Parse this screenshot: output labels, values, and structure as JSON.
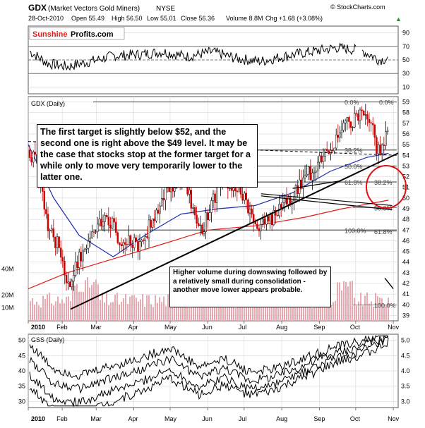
{
  "header": {
    "ticker": "GDX",
    "name": "(Market Vectors Gold Miners)",
    "exchange": "NYSE",
    "date": "28-Oct-2010",
    "open": "Open 55.49",
    "high": "High 56.50",
    "low": "Low 55.01",
    "close": "Close 56.36",
    "volume": "Volume 8.8M",
    "change": "Chg +1.68 (+3.08%)",
    "change_arrow": "▲",
    "source": "© StockCharts.com"
  },
  "logo": {
    "part1": "Sunshine",
    "part2": "Profits.com"
  },
  "colors": {
    "candle": "#d00000",
    "ma_short": "#1f2fb0",
    "ma_long": "#e11b1b",
    "volume_bar": "#e8aab0",
    "annotation_circle": "#e01010",
    "trendline": "#000000",
    "grid": "#cfcfcf"
  },
  "chart_data": [
    {
      "type": "line",
      "panel": "rsi",
      "y_ticks": [
        "90",
        "70",
        "50",
        "30",
        "10"
      ],
      "ylim": [
        0,
        100
      ],
      "x": [
        "2010-01-04",
        "2010-01-20",
        "2010-02-05",
        "2010-02-25",
        "2010-03-15",
        "2010-04-05",
        "2010-04-25",
        "2010-05-15",
        "2010-06-05",
        "2010-06-25",
        "2010-07-15",
        "2010-08-05",
        "2010-08-25",
        "2010-09-15",
        "2010-10-05",
        "2010-10-15",
        "2010-10-20",
        "2010-10-28"
      ],
      "values": [
        64,
        45,
        40,
        48,
        56,
        58,
        62,
        55,
        62,
        52,
        48,
        56,
        62,
        68,
        64,
        56,
        50,
        52
      ],
      "reference_lines": [
        70,
        50,
        30
      ]
    },
    {
      "type": "line",
      "panel": "price",
      "title": "GDX (Daily)",
      "x_ticks": [
        "2010",
        "Feb",
        "Mar",
        "Apr",
        "May",
        "Jun",
        "Jul",
        "Aug",
        "Sep",
        "Oct",
        "Nov"
      ],
      "y_ticks": [
        "59",
        "58",
        "57",
        "56",
        "55",
        "54",
        "53",
        "52",
        "51",
        "50",
        "49",
        "48",
        "47",
        "46",
        "45",
        "44",
        "43",
        "42",
        "41",
        "40",
        "39"
      ],
      "ylim": [
        38.5,
        59.5
      ],
      "x": [
        "2010-01-04",
        "2010-01-11",
        "2010-01-20",
        "2010-02-01",
        "2010-02-05",
        "2010-02-15",
        "2010-03-01",
        "2010-03-10",
        "2010-03-20",
        "2010-04-05",
        "2010-04-20",
        "2010-05-01",
        "2010-05-12",
        "2010-05-25",
        "2010-06-05",
        "2010-06-15",
        "2010-06-28",
        "2010-07-10",
        "2010-07-20",
        "2010-08-01",
        "2010-08-15",
        "2010-08-25",
        "2010-09-05",
        "2010-09-15",
        "2010-09-25",
        "2010-10-05",
        "2010-10-12",
        "2010-10-19",
        "2010-10-28"
      ],
      "values": [
        54.5,
        53.5,
        47.0,
        45.0,
        41.2,
        44.5,
        47.0,
        48.5,
        46.0,
        45.5,
        48.8,
        51.0,
        52.0,
        46.5,
        49.5,
        52.0,
        50.5,
        47.5,
        47.5,
        49.0,
        51.0,
        52.5,
        54.5,
        55.5,
        57.0,
        58.2,
        57.8,
        54.5,
        56.36
      ],
      "series": [
        {
          "name": "MA short",
          "x": [
            "2010-01-04",
            "2010-01-25",
            "2010-02-15",
            "2010-03-15",
            "2010-04-10",
            "2010-05-10",
            "2010-06-10",
            "2010-07-10",
            "2010-08-10",
            "2010-09-10",
            "2010-10-10",
            "2010-10-28"
          ],
          "values": [
            55.0,
            50.0,
            46.5,
            44.5,
            46.5,
            48.5,
            49.0,
            49.3,
            50.5,
            52.5,
            53.8,
            54.2
          ]
        },
        {
          "name": "MA long",
          "x": [
            "2010-01-04",
            "2010-02-05",
            "2010-03-15",
            "2010-04-25",
            "2010-06-01",
            "2010-07-10",
            "2010-08-20",
            "2010-09-20",
            "2010-10-28"
          ],
          "values": [
            41.5,
            43.0,
            44.3,
            45.7,
            47.0,
            47.4,
            48.2,
            49.0,
            49.8
          ]
        }
      ],
      "fibonacci": {
        "left_labels": [
          "0.0%",
          "38.2%",
          "50.0%",
          "61.8%",
          "100.0%"
        ],
        "right_labels": [
          "0.0%",
          "38.2%",
          "50.0%",
          "61.8%",
          "100.0%"
        ],
        "levels": [
          59.0,
          54.5,
          53.0,
          51.5,
          47.0
        ],
        "right_levels": [
          59.0,
          51.5,
          49.1,
          46.9,
          40.0
        ]
      },
      "annotation_main": "The first target is slightly below $52, and the second one is right above the $49 level. It may be the case that stocks stop at the former target for a while only to move very temporarily lower to the latter one.",
      "annotation_volume": "Higher volume during downswing followed by a relatively small during consolidation - another move lower appears probable.",
      "volume_ticks": [
        "40M",
        "20M",
        "10M"
      ],
      "volume_ylim": [
        0,
        60
      ]
    },
    {
      "type": "line",
      "panel": "gss",
      "title": "GSS (Daily)",
      "x_ticks": [
        "2010",
        "Feb",
        "Mar",
        "Apr",
        "May",
        "Jun",
        "Jul",
        "Aug",
        "Sep",
        "Oct",
        "Nov"
      ],
      "y_ticks_left": [
        "50",
        "45",
        "40",
        "35",
        "30"
      ],
      "y_ticks_right": [
        "5.0",
        "4.5",
        "4.0",
        "3.5",
        "3.0"
      ],
      "ylim": [
        28,
        52
      ],
      "x": [
        "2010-01-04",
        "2010-01-25",
        "2010-02-15",
        "2010-03-10",
        "2010-04-05",
        "2010-05-01",
        "2010-05-25",
        "2010-06-15",
        "2010-07-05",
        "2010-07-25",
        "2010-08-20",
        "2010-09-15",
        "2010-10-05",
        "2010-10-20",
        "2010-10-28"
      ],
      "values": [
        44,
        36,
        34,
        37,
        40,
        44,
        38,
        41,
        37,
        38,
        42,
        46,
        48,
        50,
        52
      ]
    }
  ]
}
